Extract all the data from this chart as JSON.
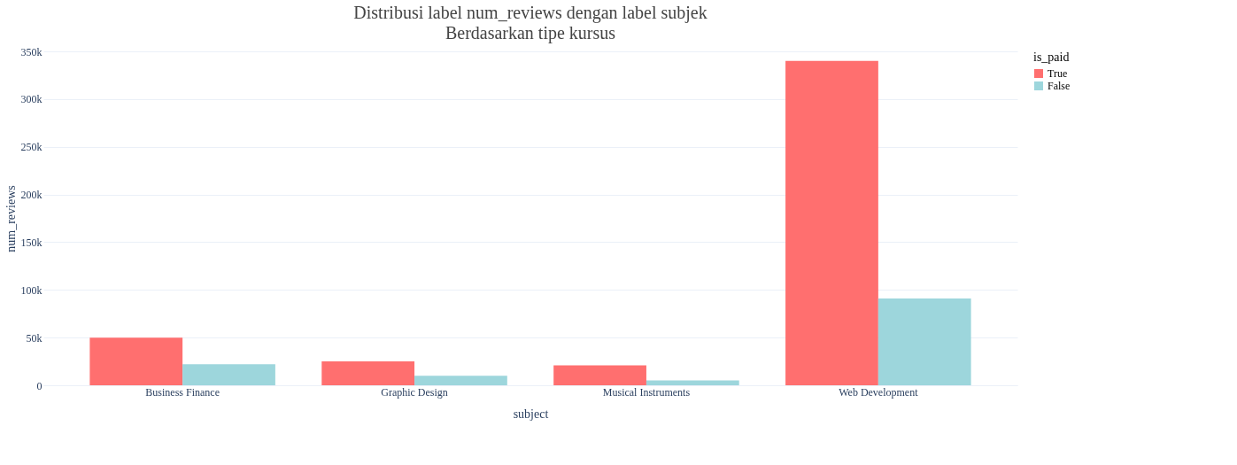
{
  "chart_data": {
    "type": "bar",
    "title": "Distribusi label num_reviews dengan label subjek",
    "subtitle": "Berdasarkan tipe kursus",
    "xlabel": "subject",
    "ylabel": "num_reviews",
    "legend_title": "is_paid",
    "categories": [
      "Business Finance",
      "Graphic Design",
      "Musical Instruments",
      "Web Development"
    ],
    "series": [
      {
        "name": "True",
        "color": "#ff6f6f",
        "values": [
          50000,
          25000,
          21000,
          340000
        ]
      },
      {
        "name": "False",
        "color": "#9dd6dc",
        "values": [
          22000,
          10000,
          5000,
          91000
        ]
      }
    ],
    "ylim": [
      0,
      350000
    ],
    "yticks": [
      0,
      {
        "value": 50000,
        "label": "50k"
      },
      {
        "value": 100000,
        "label": "100k"
      },
      {
        "value": 150000,
        "label": "150k"
      },
      {
        "value": 200000,
        "label": "200k"
      },
      {
        "value": 250000,
        "label": "250k"
      },
      {
        "value": 300000,
        "label": "300k"
      },
      {
        "value": 350000,
        "label": "350k"
      }
    ],
    "grid": "y",
    "legend": "top right"
  }
}
